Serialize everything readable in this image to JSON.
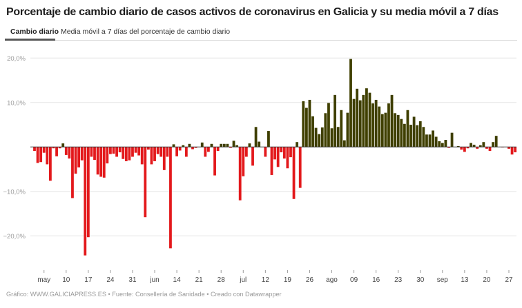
{
  "title": "Porcentaje de cambio diario de casos activos de coronavirus en Galicia y su media móvil a 7 días",
  "tabs": [
    {
      "label": "Cambio diario",
      "active": true
    },
    {
      "label": "Media móvil a 7 días del porcentaje de cambio diario",
      "active": false
    }
  ],
  "footer": "Gráfico: WWW.GALICIAPRESS.ES • Fuente: Consellería de Sanidade • Creado con Datawrapper",
  "colors": {
    "positive": "#3f3f00",
    "negative": "#e3191c",
    "grid": "#e6e6e6",
    "zero": "#333333"
  },
  "chart_data": {
    "type": "bar",
    "title": "Porcentaje de cambio diario de casos activos de coronavirus en Galicia",
    "xlabel": "",
    "ylabel": "",
    "ylim": [
      -26,
      23
    ],
    "grid": true,
    "y_ticks": [
      {
        "value": 20,
        "label": "20,0%"
      },
      {
        "value": 10,
        "label": "10,0%"
      },
      {
        "value": -10,
        "label": "−10,0%"
      },
      {
        "value": -20,
        "label": "−20,0%"
      }
    ],
    "x_ticks": [
      {
        "day": 3,
        "label": "may"
      },
      {
        "day": 10,
        "label": "10"
      },
      {
        "day": 17,
        "label": "17"
      },
      {
        "day": 24,
        "label": "24"
      },
      {
        "day": 31,
        "label": "31"
      },
      {
        "day": 38,
        "label": "jun"
      },
      {
        "day": 45,
        "label": "14"
      },
      {
        "day": 52,
        "label": "21"
      },
      {
        "day": 59,
        "label": "28"
      },
      {
        "day": 66,
        "label": "jul"
      },
      {
        "day": 73,
        "label": "12"
      },
      {
        "day": 80,
        "label": "19"
      },
      {
        "day": 87,
        "label": "26"
      },
      {
        "day": 94,
        "label": "ago"
      },
      {
        "day": 101,
        "label": "09"
      },
      {
        "day": 108,
        "label": "16"
      },
      {
        "day": 115,
        "label": "23"
      },
      {
        "day": 122,
        "label": "30"
      },
      {
        "day": 129,
        "label": "sep"
      },
      {
        "day": 136,
        "label": "13"
      },
      {
        "day": 143,
        "label": "20"
      },
      {
        "day": 150,
        "label": "27"
      }
    ],
    "values": [
      -0.9,
      -3.6,
      -3.4,
      -1.3,
      -3.9,
      -7.6,
      -0.3,
      -2.1,
      -0.3,
      0.8,
      -1.8,
      -2.6,
      -11.5,
      -6.0,
      -4.6,
      -3.0,
      -24.4,
      -20.3,
      -2.2,
      -2.9,
      -6.2,
      -6.7,
      -6.9,
      -3.7,
      -1.6,
      -1.5,
      -2.2,
      -1.2,
      -2.7,
      -3.2,
      -3.0,
      -2.2,
      -1.3,
      -1.9,
      -3.9,
      -15.8,
      -0.6,
      -3.9,
      -3.2,
      -1.6,
      -2.2,
      -5.2,
      -2.2,
      -22.8,
      0.6,
      -2.1,
      -0.8,
      0.4,
      -2.2,
      0.7,
      -0.5,
      -0.2,
      0,
      1.0,
      -2.2,
      -1.1,
      0.7,
      -6.4,
      -0.9,
      0.7,
      0.7,
      0.7,
      -0.2,
      1.4,
      0.4,
      -12.0,
      -6.6,
      -2.2,
      0.8,
      -4.2,
      4.5,
      1.2,
      0,
      -2.2,
      3.6,
      -6.3,
      -2.8,
      -4.5,
      -1.2,
      -2.6,
      -4.8,
      -2.3,
      -11.7,
      1.1,
      -9.2,
      10.3,
      8.8,
      10.6,
      6.9,
      4.3,
      2.9,
      4.4,
      7.6,
      9.9,
      4.2,
      11.7,
      4.5,
      8.3,
      1.5,
      7.7,
      19.8,
      10.8,
      13.1,
      10.5,
      11.7,
      13.2,
      12.2,
      9.8,
      10.6,
      9.1,
      7.4,
      7.7,
      9.8,
      11.7,
      7.6,
      7.2,
      6.3,
      5.2,
      8.3,
      5.0,
      6.8,
      4.9,
      5.8,
      4.5,
      2.8,
      2.8,
      3.7,
      2.3,
      1.3,
      0.9,
      1.6,
      -0.2,
      3.2,
      0,
      0.2,
      -0.6,
      -1.1,
      -0.3,
      0.9,
      0.5,
      -0.4,
      0.4,
      1.1,
      -0.4,
      -0.9,
      1.1,
      2.5,
      0,
      -0.1,
      0,
      -0.4,
      -1.7,
      -1.2
    ]
  }
}
